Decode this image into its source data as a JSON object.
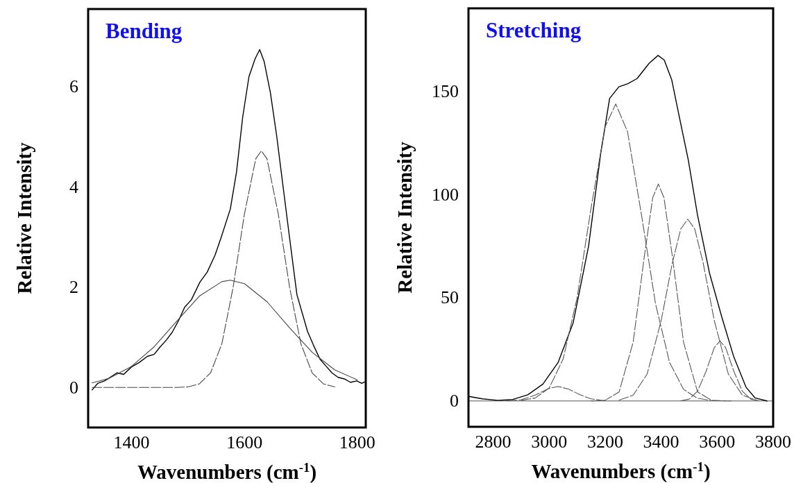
{
  "chart_data": [
    {
      "type": "line",
      "title": "Bending",
      "xlabel": "Wavenumbers (cm$^{-1}$)",
      "ylabel": "Relative Intensity",
      "xlim": [
        1323,
        1815
      ],
      "ylim": [
        -0.8,
        7.55
      ],
      "xticks": [
        1400,
        1600,
        1800
      ],
      "yticks": [
        0,
        2,
        4,
        6
      ],
      "grid": false,
      "series": [
        {
          "color": "#000000",
          "line_style": "solid",
          "x": [
            1330,
            1340,
            1352,
            1362,
            1374,
            1386,
            1400,
            1414,
            1428,
            1440,
            1450,
            1462,
            1472,
            1484,
            1494,
            1506,
            1521,
            1534,
            1548,
            1559,
            1575,
            1586,
            1597,
            1608,
            1619,
            1627,
            1635,
            1646,
            1657,
            1668,
            1679,
            1693,
            1712,
            1722,
            1734,
            1745,
            1755,
            1766,
            1777,
            1788,
            1799,
            1808,
            1815
          ],
          "values": [
            -0.05,
            0.08,
            0.13,
            0.2,
            0.29,
            0.26,
            0.41,
            0.5,
            0.62,
            0.66,
            0.8,
            0.95,
            1.1,
            1.35,
            1.6,
            1.75,
            2.1,
            2.3,
            2.64,
            3.0,
            3.56,
            4.3,
            5.4,
            6.2,
            6.56,
            6.74,
            6.5,
            5.88,
            5.03,
            4.05,
            3.07,
            1.85,
            1.11,
            0.85,
            0.56,
            0.42,
            0.29,
            0.2,
            0.17,
            0.1,
            0.13,
            0.08,
            0.12
          ]
        },
        {
          "color": "#444444",
          "line_style": "dashed",
          "x": [
            1330,
            1400,
            1480,
            1500,
            1520,
            1540,
            1560,
            1580,
            1600,
            1620,
            1630,
            1640,
            1660,
            1680,
            1700,
            1720,
            1740,
            1760
          ],
          "values": [
            0,
            0,
            0,
            0.01,
            0.07,
            0.29,
            0.87,
            2.0,
            3.46,
            4.56,
            4.72,
            4.56,
            3.46,
            2.0,
            0.87,
            0.29,
            0.07,
            0.01
          ]
        },
        {
          "color": "#444444",
          "line_style": "solid",
          "x": [
            1330,
            1360,
            1400,
            1440,
            1480,
            1520,
            1560,
            1575,
            1600,
            1640,
            1680,
            1720,
            1760,
            1800
          ],
          "values": [
            0.09,
            0.18,
            0.42,
            0.81,
            1.32,
            1.82,
            2.11,
            2.14,
            2.07,
            1.71,
            1.19,
            0.7,
            0.35,
            0.15
          ]
        }
      ]
    },
    {
      "type": "line",
      "title": "Stretching",
      "xlabel": "Wavenumbers (cm$^{-1}$)",
      "ylabel": "Relative Intensity",
      "xlim": [
        2712,
        3800
      ],
      "ylim": [
        -12.5,
        190
      ],
      "xticks": [
        2800,
        3000,
        3200,
        3400,
        3600,
        3800
      ],
      "yticks": [
        0,
        50,
        100,
        150
      ],
      "grid": false,
      "ref_lines": [
        {
          "axis": "y",
          "value": 0,
          "color": "#555555"
        }
      ],
      "series": [
        {
          "color": "#000000",
          "line_style": "solid",
          "x": [
            2714,
            2762,
            2816,
            2870,
            2924,
            2978,
            3032,
            3086,
            3141,
            3184,
            3216,
            3249,
            3281,
            3314,
            3357,
            3389,
            3411,
            3438,
            3465,
            3497,
            3530,
            3573,
            3616,
            3659,
            3703,
            3735,
            3778
          ],
          "values": [
            2.2,
            1.0,
            0.3,
            0.7,
            3,
            8.2,
            18.6,
            37.9,
            75,
            119.6,
            146.4,
            152,
            153.5,
            156,
            163.4,
            167.2,
            165,
            155.3,
            137.4,
            116.6,
            89.9,
            61.7,
            40.9,
            21.5,
            6.7,
            1.5,
            0
          ]
        },
        {
          "color": "#555555",
          "line_style": "dashed",
          "x": [
            2850,
            2900,
            2950,
            3000,
            3032,
            3070,
            3110,
            3150,
            3200
          ],
          "values": [
            0.1,
            0.6,
            2.8,
            6.1,
            7,
            5.7,
            3.0,
            1.0,
            0.1
          ]
        },
        {
          "color": "#555555",
          "line_style": "dashed",
          "x": [
            2900,
            2950,
            3000,
            3050,
            3100,
            3150,
            3200,
            3238,
            3280,
            3330,
            3380,
            3430,
            3480,
            3530,
            3580,
            3650
          ],
          "values": [
            0.3,
            1.4,
            6.2,
            20.3,
            50,
            93.6,
            132.7,
            143.7,
            130.3,
            89.9,
            47,
            18.7,
            5.6,
            1.3,
            0.2,
            0
          ]
        },
        {
          "color": "#555555",
          "line_style": "dashed",
          "x": [
            3150,
            3200,
            3250,
            3300,
            3340,
            3370,
            3390,
            3410,
            3440,
            3480,
            3530,
            3580,
            3630
          ],
          "values": [
            0,
            0.3,
            4.4,
            28.4,
            70,
            98.4,
            105,
            98.4,
            70,
            28.4,
            4.4,
            0.3,
            0
          ]
        },
        {
          "color": "#555555",
          "line_style": "dashed",
          "x": [
            3250,
            3300,
            3350,
            3400,
            3440,
            3470,
            3495,
            3520,
            3550,
            3590,
            3640,
            3690,
            3740
          ],
          "values": [
            0.4,
            2.8,
            13,
            38.8,
            66.8,
            83.2,
            88,
            83.2,
            66.8,
            38.8,
            13,
            2.8,
            0.4
          ]
        },
        {
          "color": "#555555",
          "line_style": "dashed",
          "x": [
            3470,
            3500,
            3530,
            3560,
            3590,
            3610,
            3630,
            3660,
            3690,
            3720,
            3750
          ],
          "values": [
            0.1,
            0.9,
            4.7,
            14.2,
            25.9,
            29,
            25.9,
            14.2,
            4.7,
            0.9,
            0.1
          ]
        }
      ]
    }
  ]
}
